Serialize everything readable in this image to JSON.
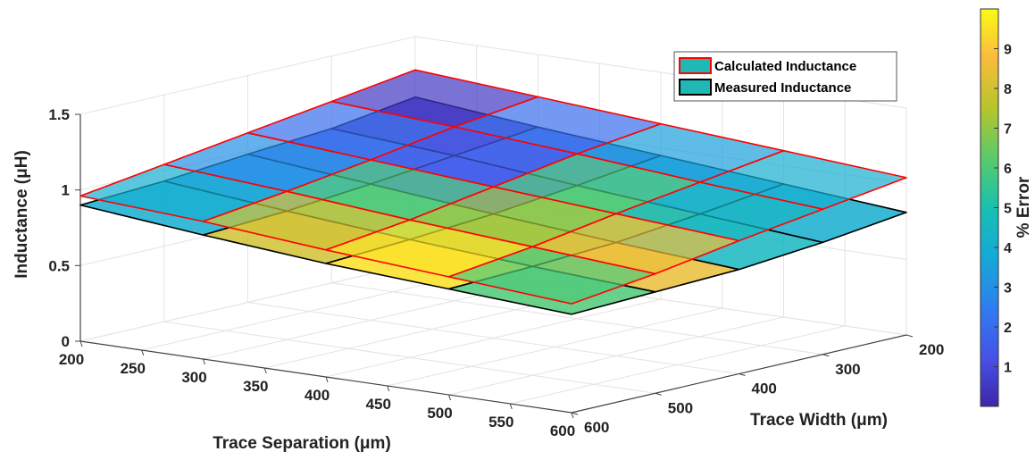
{
  "chart_data": {
    "type": "surface3d",
    "xlabel": "Trace Separation (μm)",
    "ylabel": "Trace Width (μm)",
    "zlabel": "Inductance (μH)",
    "colorbar_label": "% Error",
    "x_ticks": [
      "200",
      "250",
      "300",
      "350",
      "400",
      "450",
      "500",
      "550",
      "600"
    ],
    "y_ticks": [
      "200",
      "300",
      "400",
      "500",
      "600"
    ],
    "z_ticks": [
      "0",
      "0.5",
      "1",
      "1.5"
    ],
    "colorbar_ticks": [
      "1",
      "2",
      "3",
      "4",
      "5",
      "6",
      "7",
      "8",
      "9"
    ],
    "xlim": [
      200,
      600
    ],
    "ylim": [
      200,
      600
    ],
    "zlim": [
      0,
      1.5
    ],
    "clim": [
      0,
      10
    ],
    "grid": true,
    "legend_position": "top-right",
    "x": [
      200,
      300,
      400,
      500,
      600
    ],
    "y": [
      200,
      300,
      400,
      500,
      600
    ],
    "series": [
      {
        "name": "Calculated Inductance",
        "edge_color": "#ff0000",
        "z": [
          [
            1.28,
            1.22,
            1.16,
            1.1,
            1.04
          ],
          [
            1.2,
            1.15,
            1.09,
            1.02,
            0.96
          ],
          [
            1.12,
            1.06,
            1.0,
            0.94,
            0.88
          ],
          [
            1.04,
            0.98,
            0.91,
            0.85,
            0.79
          ],
          [
            0.96,
            0.91,
            0.84,
            0.78,
            0.72
          ]
        ]
      },
      {
        "name": "Measured Inductance",
        "edge_color": "#000000",
        "z": [
          [
            1.1,
            1.02,
            0.95,
            0.88,
            0.81
          ],
          [
            1.02,
            0.96,
            0.88,
            0.81,
            0.74
          ],
          [
            0.98,
            0.9,
            0.82,
            0.75,
            0.69
          ],
          [
            0.93,
            0.85,
            0.78,
            0.72,
            0.67
          ],
          [
            0.9,
            0.82,
            0.75,
            0.7,
            0.65
          ]
        ]
      }
    ],
    "error_percent": [
      [
        0.5,
        2.0,
        3.5,
        4.0
      ],
      [
        2.0,
        1.5,
        6.0,
        4.5
      ],
      [
        3.0,
        6.0,
        7.2,
        8.5
      ],
      [
        4.0,
        8.0,
        9.5,
        6.0
      ]
    ]
  }
}
